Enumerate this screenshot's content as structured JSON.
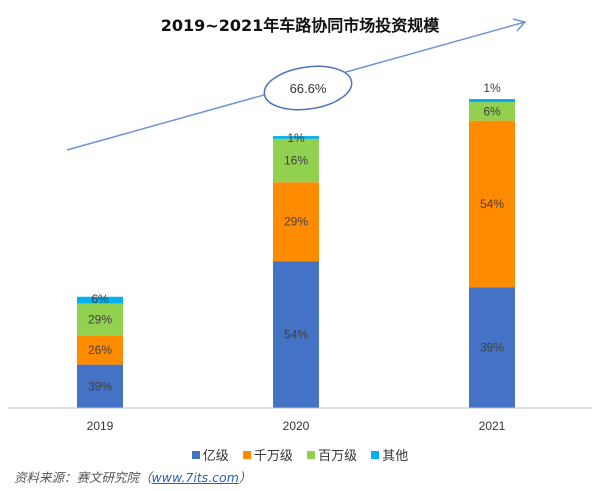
{
  "chart_data": {
    "type": "bar",
    "stacked": true,
    "title": "2019~2021年车路协同市场投资规模",
    "categories": [
      "2019",
      "2020",
      "2021"
    ],
    "relative_total_index_2021_100": [
      36,
      88,
      100
    ],
    "series": [
      {
        "name": "亿级",
        "color": "#4472C4",
        "values": [
          39,
          54,
          39
        ],
        "labels": [
          "39%",
          "54%",
          "39%"
        ]
      },
      {
        "name": "千万级",
        "color": "#FF8C00",
        "values": [
          26,
          29,
          54
        ],
        "labels": [
          "26%",
          "29%",
          "54%"
        ]
      },
      {
        "name": "百万级",
        "color": "#92D050",
        "values": [
          29,
          16,
          6
        ],
        "labels": [
          "29%",
          "16%",
          "6%"
        ]
      },
      {
        "name": "其他",
        "color": "#00B0F0",
        "values": [
          6,
          1,
          1
        ],
        "labels": [
          "6%",
          "1%",
          "1%"
        ]
      }
    ],
    "annotation": "66.6%",
    "legend_position": "bottom",
    "grid": false,
    "xlabel": "",
    "ylabel": ""
  },
  "source": {
    "label": "资料来源：赛文研究院（",
    "link": "www.7its.com",
    "close": "）"
  }
}
